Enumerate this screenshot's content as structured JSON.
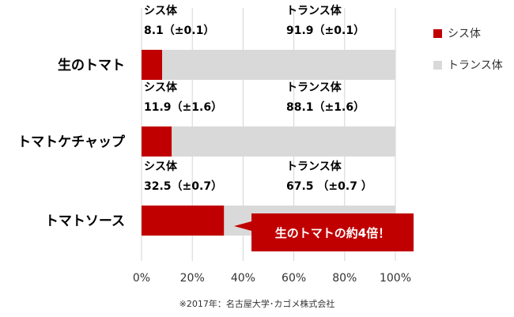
{
  "chart_data": {
    "type": "bar",
    "orientation": "horizontal",
    "stacked": true,
    "categories": [
      "生のトマト",
      "トマトケチャップ",
      "トマトソース"
    ],
    "series": [
      {
        "name": "シス体",
        "values": [
          8.1,
          11.9,
          32.5
        ],
        "color": "#c00000"
      },
      {
        "name": "トランス体",
        "values": [
          91.9,
          88.1,
          67.5
        ],
        "color": "#d9d9d9"
      }
    ],
    "annotations": [
      {
        "cis_name": "シス体",
        "cis_text": "8.1（±0.1）",
        "trans_name": "トランス体",
        "trans_text": "91.9（±0.1）"
      },
      {
        "cis_name": "シス体",
        "cis_text": "11.9（±1.6）",
        "trans_name": "トランス体",
        "trans_text": "88.1（±1.6）"
      },
      {
        "cis_name": "シス体",
        "cis_text": "32.5（±0.7）",
        "trans_name": "トランス体",
        "trans_text": "67.5 （±0.7 ）"
      }
    ],
    "xticks": [
      "0%",
      "20%",
      "40%",
      "60%",
      "80%",
      "100%"
    ],
    "xlim": [
      0,
      100
    ],
    "grid": true,
    "legend": {
      "position": "top-right",
      "items": [
        {
          "label": "シス体",
          "color": "#c00000"
        },
        {
          "label": "トランス体",
          "color": "#d9d9d9"
        }
      ]
    },
    "callout": {
      "text": "生のトマトの約4倍！",
      "category": "トマトソース",
      "color": "#c00000"
    }
  },
  "source_note": "※2017年：名古屋大学･カゴメ株式会社"
}
